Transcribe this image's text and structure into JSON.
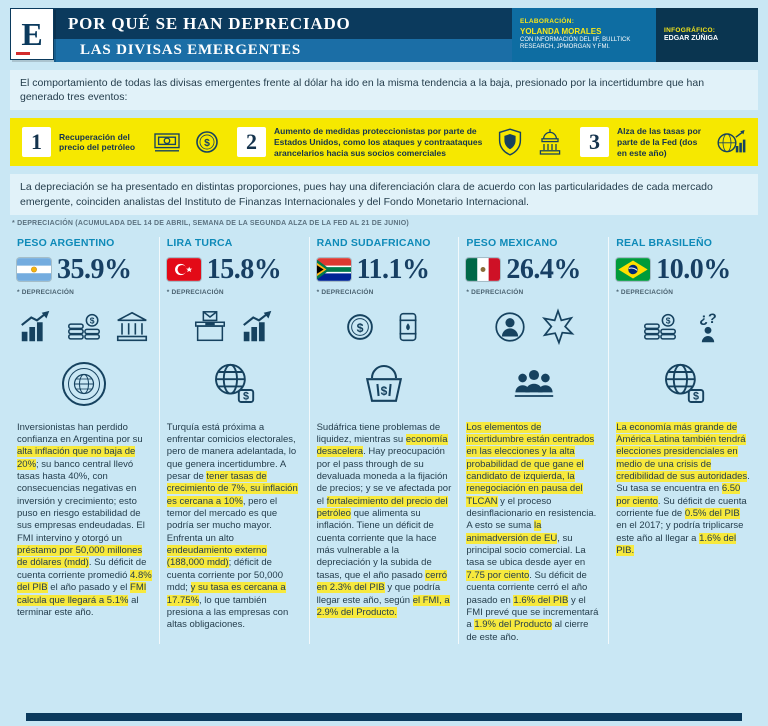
{
  "header": {
    "logo_letter": "E",
    "title_line1": "POR QUÉ SE HAN DEPRECIADO",
    "title_line2": "LAS DIVISAS EMERGENTES",
    "credits": {
      "elaboracion_label": "ELABORACIÓN:",
      "elaboracion_name": "YOLANDA MORALES",
      "elaboracion_detail": "CON INFORMACIÓN DEL IIF, BULLTICK RESEARCH, JPMORGAN Y FMI.",
      "infografico_label": "INFOGRÁFICO:",
      "infografico_name": "EDGAR ZÚÑIGA"
    }
  },
  "intro": "El comportamiento de todas las divisas emergentes frente al dólar ha ido en la misma tendencia a la baja, presionado por la incertidumbre que han generado tres eventos:",
  "events": [
    {
      "number": "1",
      "text": "Recuperación del precio del petróleo",
      "icons": [
        "bills-icon",
        "dollar-coin-icon"
      ]
    },
    {
      "number": "2",
      "text": "Aumento de medidas proteccionistas por parte de Estados Unidos, como los ataques y contraataques arancelarios hacia sus socios comerciales",
      "icons": [
        "shield-icon",
        "capitol-icon"
      ]
    },
    {
      "number": "3",
      "text": "Alza de las tasas por parte de la Fed (dos en este año)",
      "icons": [
        "globe-chart-icon"
      ]
    }
  ],
  "body_text": "La depreciación se ha presentado en distintas proporciones, pues hay una diferenciación clara de acuerdo con las particularidades de cada mercado emergente, coinciden analistas del Instituto de Finanzas Internacionales y del Fondo Monetario Internacional.",
  "footnote": "* DEPRECIACIÓN (ACUMULADA DEL 14 DE ABRIL, SEMANA DE LA SEGUNDA ALZA DE LA FED AL 21 DE JUNIO)",
  "currencies": [
    {
      "name": "PESO ARGENTINO",
      "flag": "argentina",
      "percent": "35.9%",
      "deprec_label": "* DEPRECIACIÓN",
      "icons": [
        "growth-chart-icon",
        "coins-icon",
        "bank-icon",
        "imf-seal-icon"
      ],
      "description": [
        {
          "text": "Inversionistas han perdido confianza en Argentina por su ",
          "hl": false
        },
        {
          "text": "alta inflación que no baja de 20%",
          "hl": true
        },
        {
          "text": "; su banco central llevó tasas hasta 40%, con consecuencias negativas en inversión y crecimiento; esto puso en riesgo estabilidad de sus empresas endeudadas. El FMI intervino y otorgó un ",
          "hl": false
        },
        {
          "text": "préstamo por 50,000 millones de dólares (mdd)",
          "hl": true
        },
        {
          "text": ". Su déficit de cuenta corriente promedió ",
          "hl": false
        },
        {
          "text": "4.8% del PIB",
          "hl": true
        },
        {
          "text": " el año pasado y el ",
          "hl": false
        },
        {
          "text": "FMI calcula que llegará a 5.1%",
          "hl": true
        },
        {
          "text": " al terminar este año.",
          "hl": false
        }
      ]
    },
    {
      "name": "LIRA TURCA",
      "flag": "turquia",
      "percent": "15.8%",
      "deprec_label": "* DEPRECIACIÓN",
      "icons": [
        "ballot-box-icon",
        "bar-chart-icon",
        "globe-dollar-icon"
      ],
      "description": [
        {
          "text": "Turquía está próxima a enfrentar comicios electorales, pero de manera adelantada, lo que genera incertidumbre. A pesar de ",
          "hl": false
        },
        {
          "text": "tener tasas de crecimiento de 7%, su inflación es cercana a 10%",
          "hl": true
        },
        {
          "text": ", pero el temor del mercado es que podría ser mucho mayor. Enfrenta un alto ",
          "hl": false
        },
        {
          "text": "endeudamiento externo (188,000 mdd)",
          "hl": true
        },
        {
          "text": "; déficit de cuenta corriente por 50,000 mdd; ",
          "hl": false
        },
        {
          "text": "y su tasa es cercana a 17.75%",
          "hl": true
        },
        {
          "text": ", lo que también presiona a las empresas con altas obligaciones.",
          "hl": false
        }
      ]
    },
    {
      "name": "RAND SUDAFRICANO",
      "flag": "sudafrica",
      "percent": "11.1%",
      "deprec_label": "* DEPRECIACIÓN",
      "icons": [
        "dollar-coin-icon",
        "oil-barrel-icon",
        "market-basket-icon"
      ],
      "description": [
        {
          "text": "Sudáfrica tiene problemas de liquidez, mientras su ",
          "hl": false
        },
        {
          "text": "economía desacelera",
          "hl": true
        },
        {
          "text": ". Hay preocupación por el pass through de su devaluada moneda a la fijación de precios; y se ve afectada por el ",
          "hl": false
        },
        {
          "text": "fortalecimiento del precio del petróleo",
          "hl": true
        },
        {
          "text": " que alimenta su inflación. Tiene un déficit de cuenta corriente que la hace más vulnerable a la depreciación y la subida de tasas, que el año pasado ",
          "hl": false
        },
        {
          "text": "cerró en 2.3% del PIB",
          "hl": true
        },
        {
          "text": " y que podría llegar este año, según ",
          "hl": false
        },
        {
          "text": "el FMI, a 2.9% del Producto.",
          "hl": true
        }
      ]
    },
    {
      "name": "PESO MEXICANO",
      "flag": "mexico",
      "percent": "26.4%",
      "deprec_label": "* DEPRECIACIÓN",
      "icons": [
        "person-icon",
        "starburst-icon",
        "people-group-icon"
      ],
      "description": [
        {
          "text": "Los elementos de incertidumbre están centrados en las elecciones y la alta probabilidad de que gane el candidato de izquierda, la renegociación en pausa del TLCAN",
          "hl": true
        },
        {
          "text": " y el proceso desinflacionario en resistencia. A esto se suma ",
          "hl": false
        },
        {
          "text": "la animadversión de EU",
          "hl": true
        },
        {
          "text": ", su principal socio comercial. La tasa se ubica desde ayer en ",
          "hl": false
        },
        {
          "text": "7.75 por ciento",
          "hl": true
        },
        {
          "text": ". Su déficit de cuenta corriente cerró el año pasado en ",
          "hl": false
        },
        {
          "text": "1.6% del PIB",
          "hl": true
        },
        {
          "text": " y el FMI prevé que se incrementará a ",
          "hl": false
        },
        {
          "text": "1.9% del Producto",
          "hl": true
        },
        {
          "text": " al cierre de este año.",
          "hl": false
        }
      ]
    },
    {
      "name": "REAL BRASILEÑO",
      "flag": "brasil",
      "percent": "10.0%",
      "deprec_label": "* DEPRECIACIÓN",
      "icons": [
        "coins-icon",
        "question-person-icon",
        "globe-dollar-icon"
      ],
      "description": [
        {
          "text": "La economía más grande de América Latina también tendrá elecciones presidenciales en medio de una crisis de credibilidad de sus autoridades",
          "hl": true
        },
        {
          "text": ". Su tasa se encuentra en ",
          "hl": false
        },
        {
          "text": "6.50 por ciento",
          "hl": true
        },
        {
          "text": ". Su déficit de cuenta corriente fue de ",
          "hl": false
        },
        {
          "text": "0.5% del PIB",
          "hl": true
        },
        {
          "text": " en el 2017; y podría triplicarse este año al llegar a ",
          "hl": false
        },
        {
          "text": "1.6% del PIB.",
          "hl": true
        }
      ]
    }
  ],
  "colors": {
    "page_bg": "#c9e7f4",
    "navy": "#0b3a5d",
    "light_blue_bar": "#1b6ea6",
    "accent_teal": "#0e8ab8",
    "banner_yellow": "#f6e800",
    "highlight_yellow": "#f7e93d",
    "percent_navy": "#173f63"
  }
}
